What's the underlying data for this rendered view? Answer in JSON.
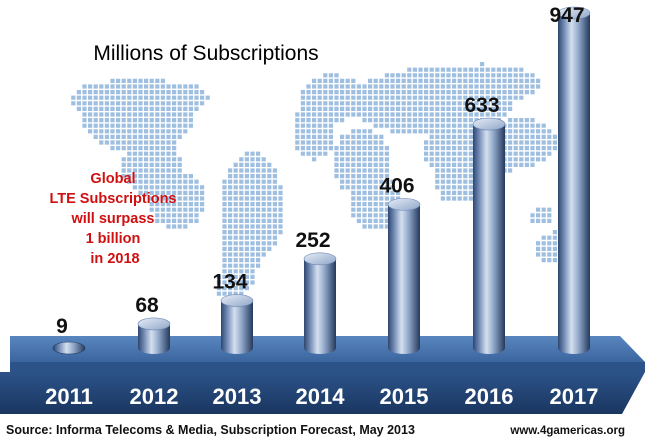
{
  "chart_data": {
    "type": "bar",
    "title": "Millions of Subscriptions",
    "categories": [
      "2011",
      "2012",
      "2013",
      "2014",
      "2015",
      "2016",
      "2017"
    ],
    "values": [
      9,
      68,
      134,
      252,
      406,
      633,
      947
    ],
    "value_labels": [
      "9",
      "68",
      "134",
      "252",
      "406",
      "633",
      "947"
    ],
    "annotation": [
      "Global",
      "LTE Subscriptions",
      "will surpass",
      "1 billion",
      "in 2018"
    ],
    "source": "Source: Informa Telecoms & Media, Subscription Forecast, May 2013",
    "website": "www.4gamericas.org",
    "ylim": [
      0,
      947
    ],
    "colors": {
      "bar_light": "#c9d6ea",
      "bar_mid": "#8fa6c8",
      "bar_dark": "#2e466e",
      "platform": "#3f6aa3",
      "platform_dark": "#1f3d68",
      "map_dots": "#8eb4dc",
      "annotation": "#d01010"
    },
    "style_notes": "3D cylinder bars on a blue platform in front of a dotted world map"
  }
}
